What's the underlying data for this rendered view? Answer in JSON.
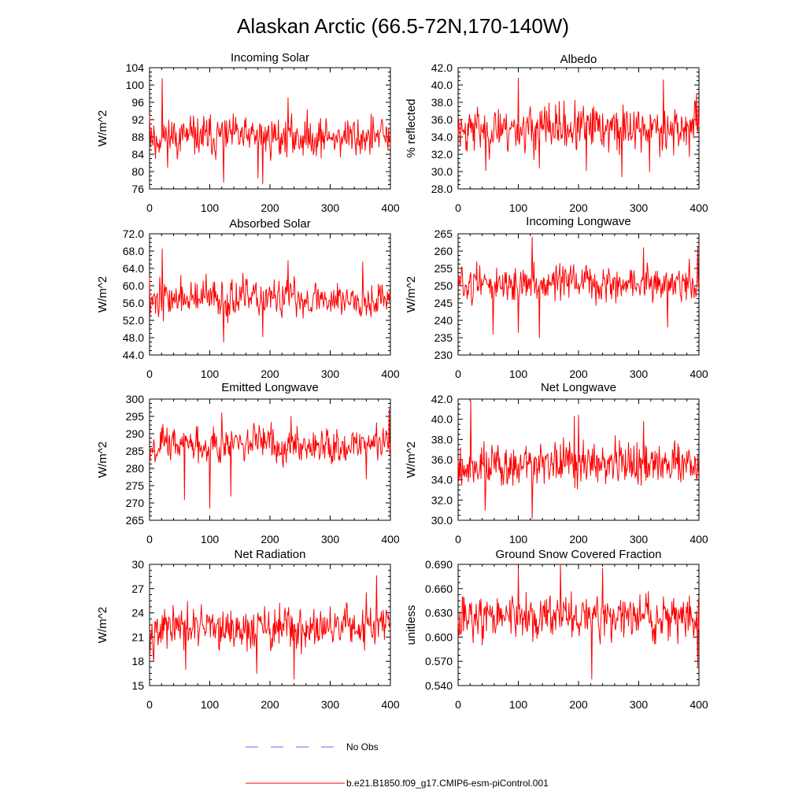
{
  "title": "Alaskan Arctic (66.5-72N,170-140W)",
  "chart_data": [
    {
      "type": "line",
      "title": "Incoming Solar",
      "ylabel": "W/m^2",
      "xlim": [
        0,
        400
      ],
      "ylim": [
        76,
        104
      ],
      "xticks": [
        0,
        100,
        200,
        300,
        400
      ],
      "xtick_labels": [
        "0",
        "100",
        "200",
        "300",
        "400"
      ],
      "yticks": [
        76,
        80,
        84,
        88,
        92,
        96,
        100,
        104
      ],
      "ytick_labels": [
        "76",
        "80",
        "84",
        "88",
        "92",
        "96",
        "100",
        "104"
      ],
      "series": [
        {
          "name": "b.e21.B1850.f09_g17.CMIP6-esm-piControl.001",
          "color": "#ff0000",
          "mean": 88,
          "amp": 4.5,
          "seed": 11,
          "spikes": [
            [
              0,
              93
            ],
            [
              3,
              90
            ],
            [
              6,
              86
            ],
            [
              10,
              83
            ],
            [
              21,
              101.5
            ],
            [
              123,
              77.5
            ],
            [
              180,
              78.5
            ],
            [
              188,
              77.2
            ],
            [
              230,
              97
            ]
          ]
        }
      ]
    },
    {
      "type": "line",
      "title": "Albedo",
      "ylabel": "% reflected",
      "xlim": [
        0,
        400
      ],
      "ylim": [
        28,
        42
      ],
      "xticks": [
        0,
        100,
        200,
        300,
        400
      ],
      "xtick_labels": [
        "0",
        "100",
        "200",
        "300",
        "400"
      ],
      "yticks": [
        28,
        30,
        32,
        34,
        36,
        38,
        40,
        42
      ],
      "ytick_labels": [
        "28.0",
        "30.0",
        "32.0",
        "34.0",
        "36.0",
        "38.0",
        "40.0",
        "42.0"
      ],
      "series": [
        {
          "name": "b.e21.B1850.f09_g17.CMIP6-esm-piControl.001",
          "color": "#ff0000",
          "mean": 35,
          "amp": 2.6,
          "seed": 23,
          "spikes": [
            [
              100,
              40.8
            ],
            [
              46,
              30.1
            ],
            [
              135,
              30.4
            ],
            [
              213,
              30.1
            ],
            [
              272,
              29.4
            ],
            [
              318,
              30.0
            ],
            [
              341,
              40.6
            ],
            [
              396,
              39.0
            ]
          ]
        }
      ]
    },
    {
      "type": "line",
      "title": "Absorbed Solar",
      "ylabel": "W/m^2",
      "xlim": [
        0,
        400
      ],
      "ylim": [
        44,
        72
      ],
      "xticks": [
        0,
        100,
        200,
        300,
        400
      ],
      "xtick_labels": [
        "0",
        "100",
        "200",
        "300",
        "400"
      ],
      "yticks": [
        44,
        48,
        52,
        56,
        60,
        64,
        68,
        72
      ],
      "ytick_labels": [
        "44.0",
        "48.0",
        "52.0",
        "56.0",
        "60.0",
        "64.0",
        "68.0",
        "72.0"
      ],
      "series": [
        {
          "name": "b.e21.B1850.f09_g17.CMIP6-esm-piControl.001",
          "color": "#ff0000",
          "mean": 57,
          "amp": 4.2,
          "seed": 37,
          "spikes": [
            [
              0,
              62
            ],
            [
              21,
              68.5
            ],
            [
              123,
              47
            ],
            [
              188,
              48.2
            ],
            [
              230,
              65.8
            ],
            [
              354,
              65.5
            ]
          ]
        }
      ]
    },
    {
      "type": "line",
      "title": "Incoming Longwave",
      "ylabel": "W/m^2",
      "xlim": [
        0,
        400
      ],
      "ylim": [
        230,
        265
      ],
      "xticks": [
        0,
        100,
        200,
        300,
        400
      ],
      "xtick_labels": [
        "0",
        "100",
        "200",
        "300",
        "400"
      ],
      "yticks": [
        230,
        235,
        240,
        245,
        250,
        255,
        260,
        265
      ],
      "ytick_labels": [
        "230",
        "235",
        "240",
        "245",
        "250",
        "255",
        "260",
        "265"
      ],
      "series": [
        {
          "name": "b.e21.B1850.f09_g17.CMIP6-esm-piControl.001",
          "color": "#ff0000",
          "mean": 250.5,
          "amp": 5,
          "seed": 51,
          "spikes": [
            [
              58,
              236
            ],
            [
              100,
              236.5
            ],
            [
              123,
              264
            ],
            [
              135,
              235
            ],
            [
              308,
              261
            ],
            [
              348,
              238
            ],
            [
              398,
              261
            ]
          ]
        }
      ]
    },
    {
      "type": "line",
      "title": "Emitted Longwave",
      "ylabel": "W/m^2",
      "xlim": [
        0,
        400
      ],
      "ylim": [
        265,
        300
      ],
      "xticks": [
        0,
        100,
        200,
        300,
        400
      ],
      "xtick_labels": [
        "0",
        "100",
        "200",
        "300",
        "400"
      ],
      "yticks": [
        265,
        270,
        275,
        280,
        285,
        290,
        295,
        300
      ],
      "ytick_labels": [
        "265",
        "270",
        "275",
        "280",
        "285",
        "290",
        "295",
        "300"
      ],
      "series": [
        {
          "name": "b.e21.B1850.f09_g17.CMIP6-esm-piControl.001",
          "color": "#ff0000",
          "mean": 287,
          "amp": 5,
          "seed": 67,
          "spikes": [
            [
              58,
              271
            ],
            [
              100,
              268.5
            ],
            [
              135,
              272
            ],
            [
              120,
              296
            ],
            [
              235,
              295
            ],
            [
              360,
              277
            ],
            [
              398,
              297
            ]
          ]
        }
      ]
    },
    {
      "type": "line",
      "title": "Net Longwave",
      "ylabel": "W/m^2",
      "xlim": [
        0,
        400
      ],
      "ylim": [
        30,
        42
      ],
      "xticks": [
        0,
        100,
        200,
        300,
        400
      ],
      "xtick_labels": [
        "0",
        "100",
        "200",
        "300",
        "400"
      ],
      "yticks": [
        30,
        32,
        34,
        36,
        38,
        40,
        42
      ],
      "ytick_labels": [
        "30.0",
        "32.0",
        "34.0",
        "36.0",
        "38.0",
        "40.0",
        "42.0"
      ],
      "series": [
        {
          "name": "b.e21.B1850.f09_g17.CMIP6-esm-piControl.001",
          "color": "#ff0000",
          "mean": 35.5,
          "amp": 2.2,
          "seed": 79,
          "spikes": [
            [
              21,
              41.8
            ],
            [
              123,
              30.2
            ],
            [
              200,
              40.4
            ],
            [
              193,
              40.3
            ],
            [
              308,
              39.8
            ],
            [
              45,
              31.0
            ]
          ]
        }
      ]
    },
    {
      "type": "line",
      "title": "Net Radiation",
      "ylabel": "W/m^2",
      "xlim": [
        0,
        400
      ],
      "ylim": [
        15,
        30
      ],
      "xticks": [
        0,
        100,
        200,
        300,
        400
      ],
      "xtick_labels": [
        "0",
        "100",
        "200",
        "300",
        "400"
      ],
      "yticks": [
        15,
        18,
        21,
        24,
        27,
        30
      ],
      "ytick_labels": [
        "15",
        "18",
        "21",
        "24",
        "27",
        "30"
      ],
      "series": [
        {
          "name": "b.e21.B1850.f09_g17.CMIP6-esm-piControl.001",
          "color": "#ff0000",
          "mean": 22,
          "amp": 2.6,
          "seed": 97,
          "spikes": [
            [
              377,
              28.6
            ],
            [
              240,
              15.8
            ],
            [
              178,
              16.5
            ],
            [
              60,
              17
            ],
            [
              360,
              26.5
            ]
          ]
        }
      ]
    },
    {
      "type": "line",
      "title": "Ground Snow Covered Fraction",
      "ylabel": "unitless",
      "xlim": [
        0,
        400
      ],
      "ylim": [
        0.54,
        0.69
      ],
      "xticks": [
        0,
        100,
        200,
        300,
        400
      ],
      "xtick_labels": [
        "0",
        "100",
        "200",
        "300",
        "400"
      ],
      "yticks": [
        0.54,
        0.57,
        0.6,
        0.63,
        0.66,
        0.69
      ],
      "ytick_labels": [
        "0.540",
        "0.570",
        "0.600",
        "0.630",
        "0.660",
        "0.690"
      ],
      "series": [
        {
          "name": "b.e21.B1850.f09_g17.CMIP6-esm-piControl.001",
          "color": "#ff0000",
          "mean": 0.625,
          "amp": 0.027,
          "seed": 113,
          "spikes": [
            [
              170,
              0.689
            ],
            [
              222,
              0.548
            ],
            [
              398,
              0.564
            ],
            [
              100,
              0.685
            ],
            [
              240,
              0.685
            ]
          ]
        }
      ]
    }
  ],
  "legend": {
    "obs_label": "No Obs",
    "obs_color": "#6a6af0",
    "model_label": "b.e21.B1850.f09_g17.CMIP6-esm-piControl.001",
    "model_color": "#ff0000"
  }
}
